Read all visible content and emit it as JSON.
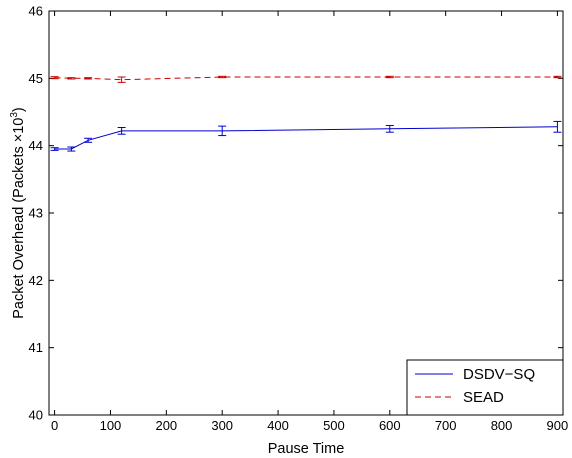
{
  "chart_data": {
    "type": "line",
    "title": "",
    "xlabel": "Pause Time",
    "ylabel_main": "Packet Overhead (Packets ×10",
    "ylabel_exp": "3",
    "ylabel_close": ")",
    "xlim": [
      -10,
      910
    ],
    "ylim": [
      40,
      46
    ],
    "x": [
      0,
      30,
      60,
      120,
      300,
      600,
      900
    ],
    "xticks": [
      0,
      100,
      200,
      300,
      400,
      500,
      600,
      700,
      800,
      900
    ],
    "yticks": [
      40,
      41,
      42,
      43,
      44,
      45,
      46
    ],
    "grid": false,
    "legend_position": "bottom-right",
    "series": [
      {
        "name": "DSDV−SQ",
        "color": "#0000cc",
        "dash": "solid",
        "values": [
          43.95,
          43.95,
          44.08,
          44.22,
          44.22,
          44.25,
          44.28
        ],
        "err": [
          0.02,
          0.03,
          0.03,
          0.05,
          0.07,
          0.05,
          0.08
        ]
      },
      {
        "name": "SEAD",
        "color": "#cc0000",
        "dash": "dashed",
        "values": [
          45.01,
          45.0,
          45.0,
          44.98,
          45.02,
          45.02,
          45.02
        ],
        "err": [
          0.015,
          0.01,
          0.01,
          0.04,
          0.01,
          0.01,
          0.01
        ]
      }
    ]
  }
}
